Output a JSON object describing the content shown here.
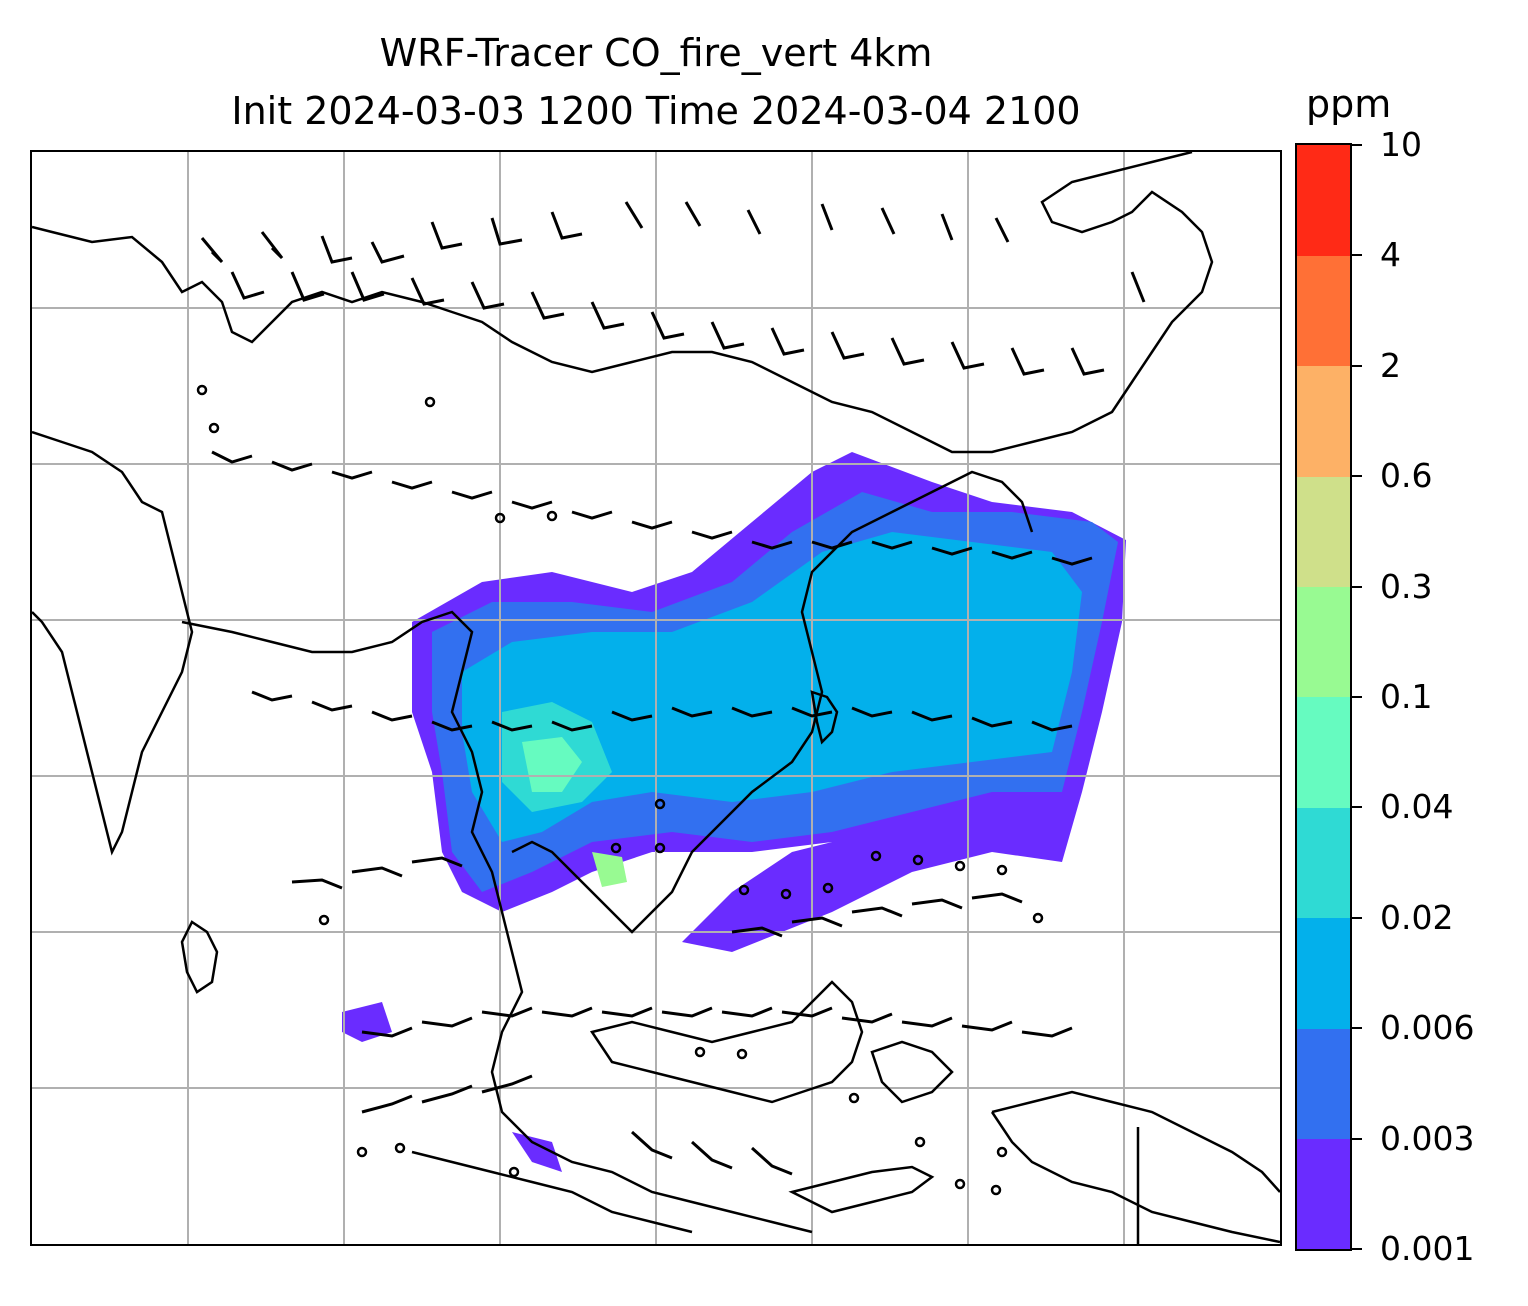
{
  "title": {
    "line1": "WRF-Tracer CO_fire_vert 4km",
    "line2": "Init 2024-03-03 1200 Time 2024-03-04 2100"
  },
  "colorbar": {
    "units": "ppm",
    "ticks": [
      "0.001",
      "0.003",
      "0.006",
      "0.02",
      "0.04",
      "0.1",
      "0.3",
      "0.6",
      "2",
      "4",
      "10"
    ],
    "colors": [
      "#6a2cff",
      "#3270f0",
      "#03b0eb",
      "#2fdad4",
      "#66fbc0",
      "#98fa92",
      "#cfe08a",
      "#fdb166",
      "#ff7036",
      "#ff2a16"
    ]
  },
  "map": {
    "gridlines": true,
    "coastline_color": "#000000",
    "gridline_color": "#b0b0b0"
  }
}
